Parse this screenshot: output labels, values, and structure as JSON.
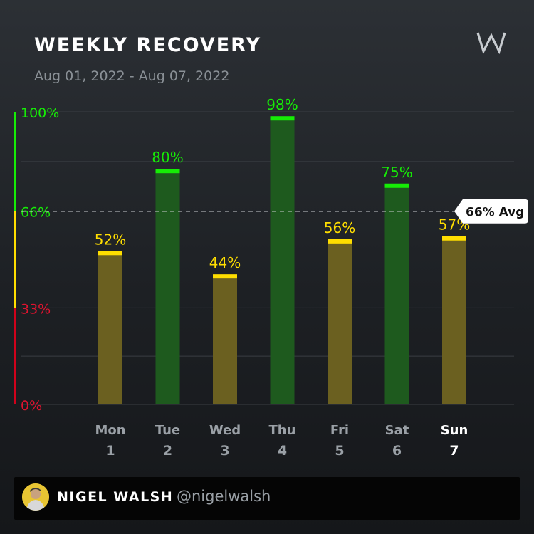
{
  "header": {
    "title": "WEEKLY RECOVERY",
    "date_range": "Aug 01, 2022 - Aug 07, 2022",
    "logo_icon": "whoop-logo-icon"
  },
  "chart_data": {
    "type": "bar",
    "title": "WEEKLY RECOVERY",
    "categories": [
      "Mon",
      "Tue",
      "Wed",
      "Thu",
      "Fri",
      "Sat",
      "Sun"
    ],
    "dates": [
      "1",
      "2",
      "3",
      "4",
      "5",
      "6",
      "7"
    ],
    "values": [
      52,
      80,
      44,
      98,
      56,
      75,
      57
    ],
    "value_labels": [
      "52%",
      "80%",
      "44%",
      "98%",
      "56%",
      "75%",
      "57%"
    ],
    "highlighted_category": "Sun",
    "ylim": [
      0,
      100
    ],
    "y_ticks": [
      {
        "value": 100,
        "label": "100%"
      },
      {
        "value": 66,
        "label": "66%"
      },
      {
        "value": 33,
        "label": "33%"
      },
      {
        "value": 0,
        "label": "0%"
      }
    ],
    "average": {
      "value": 66,
      "label": "66% Avg"
    },
    "zones": [
      {
        "name": "red",
        "from": 0,
        "to": 33,
        "color": "#d0021b"
      },
      {
        "name": "yellow",
        "from": 33,
        "to": 66,
        "color": "#ffde00"
      },
      {
        "name": "green",
        "from": 66,
        "to": 100,
        "color": "#16ec06"
      }
    ],
    "green_threshold": 67,
    "colors": {
      "green_label": "#16ec06",
      "green_fill": "#1e5a1e",
      "yellow_label": "#ffde00",
      "yellow_fill": "#6b6020",
      "red_label": "#e0132f",
      "axis_text": "#9aa0a6",
      "highlight_text": "#ffffff",
      "gridline": "#3a3e43"
    }
  },
  "footer": {
    "name": "NIGEL WALSH",
    "handle": "@nigelwalsh",
    "avatar_icon": "user-avatar"
  }
}
